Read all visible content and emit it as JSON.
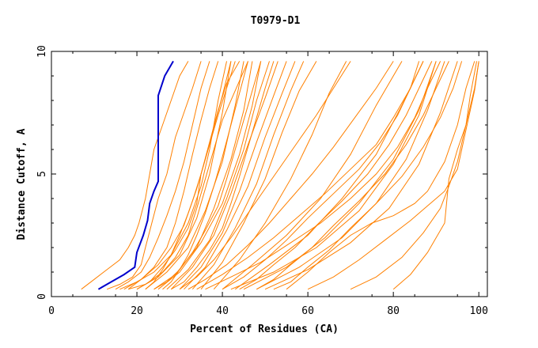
{
  "chart_data": {
    "type": "line",
    "title": "T0979-D1",
    "xlabel": "Percent of Residues (CA)",
    "ylabel": "Distance Cutoff, A",
    "xlim": [
      0,
      102
    ],
    "ylim": [
      0,
      10
    ],
    "xticks": [
      "0",
      "20",
      "40",
      "60",
      "80",
      "100"
    ],
    "yticks": [
      "0",
      "5",
      "10"
    ],
    "grid": false,
    "legend": "none",
    "highlight_color": "#0000cc",
    "other_color": "#ff8000",
    "series": [
      {
        "highlight": true,
        "x": [
          11,
          14,
          17,
          19.5,
          20,
          21.5,
          22.5,
          23,
          24,
          25,
          25,
          25,
          26.5,
          28.5
        ],
        "y": [
          0.3,
          0.6,
          0.9,
          1.2,
          1.8,
          2.5,
          3.1,
          3.8,
          4.3,
          4.7,
          6.5,
          8.2,
          9.0,
          9.6
        ]
      },
      {
        "x": [
          7,
          10,
          13,
          16,
          18,
          19.5,
          20.5,
          22,
          23,
          24,
          26,
          28,
          30,
          32
        ],
        "y": [
          0.3,
          0.7,
          1.1,
          1.5,
          2.0,
          2.5,
          3.0,
          4.0,
          5.0,
          6.0,
          7.0,
          8.0,
          9.0,
          9.6
        ]
      },
      {
        "x": [
          13,
          16,
          19,
          21,
          22,
          23.5,
          25,
          27,
          29,
          31,
          33,
          35
        ],
        "y": [
          0.3,
          0.5,
          0.8,
          1.3,
          2.0,
          3.0,
          4.0,
          5.0,
          6.5,
          7.5,
          8.5,
          9.6
        ]
      },
      {
        "x": [
          15,
          18,
          21,
          23,
          25,
          27,
          29,
          31,
          33,
          35,
          37
        ],
        "y": [
          0.3,
          0.6,
          1.0,
          1.6,
          2.4,
          3.3,
          4.3,
          5.5,
          7.0,
          8.5,
          9.6
        ]
      },
      {
        "x": [
          18,
          21,
          24,
          27,
          29,
          31,
          33,
          35,
          37,
          39
        ],
        "y": [
          0.3,
          0.7,
          1.2,
          2.0,
          3.0,
          4.3,
          5.8,
          7.2,
          8.5,
          9.6
        ]
      },
      {
        "x": [
          16,
          20,
          24,
          28,
          32,
          35,
          37,
          39,
          41
        ],
        "y": [
          0.3,
          0.6,
          1.0,
          1.7,
          3.0,
          4.5,
          6.0,
          8.0,
          9.6
        ]
      },
      {
        "x": [
          20,
          25,
          30,
          34,
          37,
          40,
          42
        ],
        "y": [
          0.3,
          0.8,
          1.7,
          3.2,
          5.0,
          7.5,
          9.6
        ]
      },
      {
        "x": [
          22,
          27,
          32,
          36,
          40,
          43,
          45
        ],
        "y": [
          0.3,
          1.0,
          2.0,
          3.5,
          5.5,
          7.8,
          9.6
        ]
      },
      {
        "x": [
          24,
          29,
          34,
          38,
          42,
          45,
          47
        ],
        "y": [
          0.3,
          0.9,
          2.0,
          3.6,
          5.6,
          7.6,
          9.6
        ]
      },
      {
        "x": [
          25,
          30,
          35,
          40,
          44,
          47,
          49
        ],
        "y": [
          0.3,
          1.0,
          2.2,
          3.8,
          5.8,
          7.8,
          9.6
        ]
      },
      {
        "x": [
          27,
          32,
          37,
          41,
          45,
          48,
          51
        ],
        "y": [
          0.3,
          1.1,
          2.3,
          4.0,
          6.0,
          8.0,
          9.6
        ]
      },
      {
        "x": [
          28,
          33,
          38,
          42,
          46,
          50,
          53
        ],
        "y": [
          0.3,
          1.2,
          2.5,
          4.2,
          6.2,
          8.1,
          9.6
        ]
      },
      {
        "x": [
          30,
          35,
          40,
          44,
          48,
          52,
          55
        ],
        "y": [
          0.3,
          1.2,
          2.6,
          4.3,
          6.3,
          8.2,
          9.6
        ]
      },
      {
        "x": [
          31,
          36,
          41,
          46,
          50,
          54,
          57
        ],
        "y": [
          0.3,
          1.2,
          2.7,
          4.5,
          6.5,
          8.3,
          9.6
        ]
      },
      {
        "x": [
          33,
          38,
          43,
          48,
          52,
          56,
          59
        ],
        "y": [
          0.3,
          1.3,
          2.8,
          4.6,
          6.6,
          8.4,
          9.6
        ]
      },
      {
        "x": [
          35,
          40,
          45,
          50,
          54,
          58,
          62
        ],
        "y": [
          0.3,
          1.4,
          3.0,
          4.8,
          6.7,
          8.4,
          9.6
        ]
      },
      {
        "x": [
          38,
          44,
          50,
          56,
          61,
          65,
          69
        ],
        "y": [
          0.3,
          1.5,
          3.0,
          4.8,
          6.6,
          8.3,
          9.6
        ]
      },
      {
        "x": [
          40,
          47,
          55,
          63,
          70,
          76,
          82
        ],
        "y": [
          0.3,
          1.3,
          2.5,
          4.0,
          5.8,
          7.8,
          9.6
        ]
      },
      {
        "x": [
          43,
          51,
          60,
          68,
          76,
          82,
          87
        ],
        "y": [
          0.3,
          1.3,
          2.5,
          4.0,
          5.8,
          7.8,
          9.6
        ]
      },
      {
        "x": [
          45,
          55,
          64,
          72,
          80,
          86,
          90
        ],
        "y": [
          0.3,
          1.2,
          2.4,
          3.8,
          5.6,
          7.6,
          9.6
        ]
      },
      {
        "x": [
          48,
          58,
          68,
          76,
          83,
          88,
          92
        ],
        "y": [
          0.3,
          1.2,
          2.4,
          3.8,
          5.6,
          7.6,
          9.6
        ]
      },
      {
        "x": [
          50,
          60,
          70,
          79,
          86,
          91,
          95
        ],
        "y": [
          0.3,
          1.1,
          2.2,
          3.6,
          5.4,
          7.5,
          9.6
        ]
      },
      {
        "x": [
          42,
          52,
          62,
          72,
          80,
          86,
          90
        ],
        "y": [
          0.3,
          1.0,
          2.0,
          3.5,
          5.4,
          7.4,
          9.6
        ]
      },
      {
        "x": [
          55,
          60,
          65,
          70,
          75,
          80,
          85,
          88,
          92,
          95,
          97,
          99
        ],
        "y": [
          0.3,
          1.0,
          1.8,
          2.5,
          3.0,
          3.3,
          3.8,
          4.3,
          5.5,
          7.0,
          8.5,
          9.6
        ]
      },
      {
        "x": [
          60,
          66,
          72,
          78,
          84,
          88,
          92,
          95,
          97,
          99,
          100
        ],
        "y": [
          0.3,
          0.8,
          1.5,
          2.3,
          3.1,
          3.7,
          4.3,
          5.2,
          6.8,
          8.4,
          9.6
        ]
      },
      {
        "x": [
          70,
          76,
          82,
          87,
          91,
          93,
          95,
          97,
          99,
          100
        ],
        "y": [
          0.3,
          0.8,
          1.6,
          2.6,
          3.6,
          4.5,
          5.5,
          7.0,
          8.5,
          9.6
        ]
      },
      {
        "x": [
          80,
          84,
          88,
          92,
          93,
          95,
          97,
          98,
          99.5
        ],
        "y": [
          0.3,
          0.9,
          1.8,
          3.0,
          4.8,
          6.0,
          7.0,
          8.2,
          9.6
        ]
      },
      {
        "x": [
          22,
          24,
          26,
          28,
          30,
          32,
          34,
          36,
          38,
          40,
          42
        ],
        "y": [
          0.3,
          0.6,
          1.1,
          1.7,
          2.5,
          3.4,
          4.4,
          5.6,
          6.9,
          8.2,
          9.6
        ]
      },
      {
        "x": [
          26,
          28,
          30,
          32,
          34,
          36,
          38,
          40,
          42,
          44,
          46
        ],
        "y": [
          0.3,
          0.6,
          1.1,
          1.7,
          2.5,
          3.4,
          4.5,
          5.7,
          7.0,
          8.3,
          9.6
        ]
      },
      {
        "x": [
          18,
          22,
          26,
          29,
          32,
          34,
          36,
          38,
          40,
          43,
          46
        ],
        "y": [
          0.3,
          0.5,
          1.0,
          1.6,
          2.5,
          3.6,
          4.8,
          6.0,
          7.2,
          8.4,
          9.6
        ]
      },
      {
        "x": [
          20,
          23,
          26,
          29,
          32,
          34,
          35,
          37,
          39,
          41,
          44
        ],
        "y": [
          0.3,
          0.6,
          1.2,
          1.9,
          2.8,
          3.8,
          5.0,
          6.3,
          7.6,
          8.7,
          9.6
        ]
      },
      {
        "x": [
          30,
          34,
          38,
          42,
          46,
          50,
          54,
          58,
          62,
          66,
          70
        ],
        "y": [
          0.3,
          0.8,
          1.5,
          2.4,
          3.4,
          4.4,
          5.4,
          6.4,
          7.4,
          8.5,
          9.6
        ]
      },
      {
        "x": [
          34,
          40,
          46,
          52,
          58,
          64,
          70,
          76,
          80,
          84,
          87
        ],
        "y": [
          0.3,
          0.9,
          1.6,
          2.4,
          3.3,
          4.2,
          5.2,
          6.2,
          7.3,
          8.5,
          9.6
        ]
      },
      {
        "x": [
          36,
          42,
          49,
          56,
          63,
          70,
          76,
          81,
          85,
          88,
          91
        ],
        "y": [
          0.3,
          0.8,
          1.4,
          2.2,
          3.0,
          4.0,
          5.0,
          6.1,
          7.3,
          8.5,
          9.6
        ]
      },
      {
        "x": [
          32,
          36,
          41,
          46,
          51,
          56,
          61,
          66,
          71,
          76,
          80
        ],
        "y": [
          0.3,
          0.7,
          1.3,
          2.1,
          3.0,
          4.0,
          5.0,
          6.1,
          7.3,
          8.5,
          9.6
        ]
      },
      {
        "x": [
          40,
          45,
          50,
          55,
          60,
          66,
          72,
          77,
          81,
          84,
          86
        ],
        "y": [
          0.3,
          0.8,
          1.5,
          2.3,
          3.2,
          4.2,
          5.2,
          6.3,
          7.4,
          8.5,
          9.6
        ]
      },
      {
        "x": [
          44,
          48,
          52,
          57,
          62,
          68,
          74,
          79,
          83,
          86,
          89
        ],
        "y": [
          0.3,
          0.7,
          1.3,
          2.0,
          2.9,
          3.9,
          5.0,
          6.2,
          7.4,
          8.5,
          9.6
        ]
      },
      {
        "x": [
          48,
          52,
          56,
          61,
          66,
          72,
          78,
          83,
          87,
          90,
          93
        ],
        "y": [
          0.3,
          0.7,
          1.3,
          2.0,
          2.9,
          3.9,
          5.0,
          6.2,
          7.4,
          8.5,
          9.6
        ]
      },
      {
        "x": [
          52,
          56,
          60,
          65,
          70,
          76,
          82,
          87,
          91,
          94,
          96
        ],
        "y": [
          0.3,
          0.6,
          1.2,
          1.9,
          2.8,
          3.8,
          4.9,
          6.1,
          7.3,
          8.5,
          9.6
        ]
      },
      {
        "x": [
          24,
          27,
          30,
          33,
          36,
          39,
          41,
          43,
          45,
          47,
          49
        ],
        "y": [
          0.3,
          0.6,
          1.1,
          1.8,
          2.7,
          3.7,
          4.8,
          6.0,
          7.2,
          8.4,
          9.6
        ]
      },
      {
        "x": [
          28,
          31,
          34,
          37,
          40,
          42,
          44,
          46,
          48,
          50,
          52
        ],
        "y": [
          0.3,
          0.6,
          1.2,
          1.9,
          2.8,
          3.8,
          4.9,
          6.1,
          7.3,
          8.5,
          9.6
        ]
      },
      {
        "x": [
          17,
          21,
          25,
          28,
          31,
          33,
          35,
          37,
          39,
          41,
          43
        ],
        "y": [
          0.3,
          0.7,
          1.3,
          2.0,
          2.9,
          3.9,
          5.0,
          6.2,
          7.4,
          8.5,
          9.6
        ]
      }
    ]
  }
}
